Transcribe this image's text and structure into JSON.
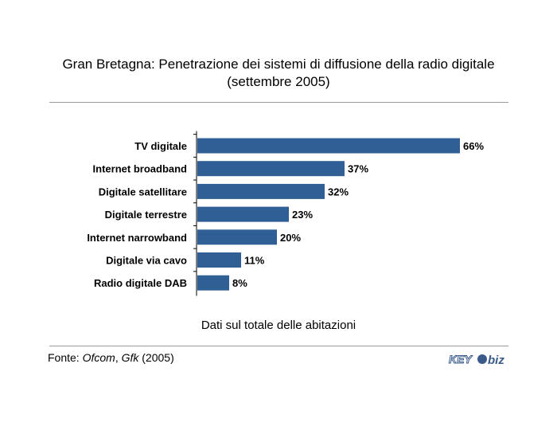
{
  "title_line1": "Gran Bretagna: Penetrazione dei sistemi di diffusione della radio digitale",
  "title_line2": "(settembre 2005)",
  "footnote": "Dati sul totale delle abitazioni",
  "source": {
    "prefix": "Fonte: ",
    "org1": "Ofcom",
    "sep": ", ",
    "org2": "Gfk",
    "suffix": " (2005)"
  },
  "logo": {
    "text_left": "KEY",
    "text_right": "biz",
    "color": "#3a5a8a"
  },
  "colors": {
    "bar": "#2f5f94",
    "rule": "#9a9a9a"
  },
  "chart_data": {
    "type": "bar",
    "orientation": "horizontal",
    "categories": [
      "TV digitale",
      "Internet broadband",
      "Digitale satellitare",
      "Digitale terrestre",
      "Internet narrowband",
      "Digitale via cavo",
      "Radio digitale DAB"
    ],
    "values": [
      66,
      37,
      32,
      23,
      20,
      11,
      8
    ],
    "value_labels": [
      "66%",
      "37%",
      "32%",
      "23%",
      "20%",
      "11%",
      "8%"
    ],
    "unit": "%",
    "xlim": [
      0,
      66
    ],
    "grid": false
  }
}
